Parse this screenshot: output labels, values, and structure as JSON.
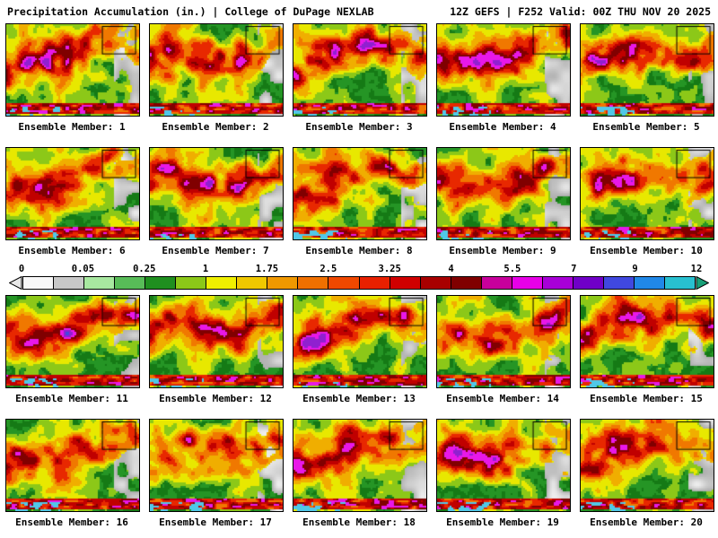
{
  "header": {
    "left": "Precipitation Accumulation (in.) | College of DuPage NEXLAB",
    "right": "12Z GEFS | F252 Valid: 00Z THU NOV 20 2025"
  },
  "members": {
    "label_prefix": "Ensemble Member:",
    "labels": [
      "Ensemble Member: 1",
      "Ensemble Member: 2",
      "Ensemble Member: 3",
      "Ensemble Member: 4",
      "Ensemble Member: 5",
      "Ensemble Member: 6",
      "Ensemble Member: 7",
      "Ensemble Member: 8",
      "Ensemble Member: 9",
      "Ensemble Member: 10",
      "Ensemble Member: 11",
      "Ensemble Member: 12",
      "Ensemble Member: 13",
      "Ensemble Member: 14",
      "Ensemble Member: 15",
      "Ensemble Member: 16",
      "Ensemble Member: 17",
      "Ensemble Member: 18",
      "Ensemble Member: 19",
      "Ensemble Member: 20"
    ]
  },
  "colorbar": {
    "units": "in.",
    "tick_labels": [
      "0",
      "0.05",
      "0.25",
      "1",
      "1.75",
      "2.5",
      "3.25",
      "4",
      "5.5",
      "7",
      "9",
      "12"
    ],
    "segment_colors": [
      "#f8f8f8",
      "#c8c8c8",
      "#a8e8a0",
      "#58bc58",
      "#1f8f1f",
      "#8cc818",
      "#f0f000",
      "#f0c800",
      "#f09800",
      "#f07000",
      "#f04800",
      "#e82000",
      "#d00000",
      "#a80000",
      "#800000",
      "#c8009c",
      "#e800e8",
      "#a800d8",
      "#7000c8",
      "#4048e0",
      "#2088e8",
      "#28c0d0"
    ],
    "left_arrow_color": "#e8e8e8",
    "right_arrow_color": "#18a078"
  },
  "map_palette": {
    "green1": "#157a15",
    "green2": "#259525",
    "yellowGreen": "#8cc818",
    "yellow": "#e8e800",
    "orange": "#f0ae00",
    "darkOrange": "#f07800",
    "red": "#e82800",
    "darkRed": "#c00000",
    "maroon": "#800000",
    "magenta": "#e818e8",
    "purple": "#9020d0",
    "blue": "#4048e0",
    "cyan": "#50c8e8"
  }
}
